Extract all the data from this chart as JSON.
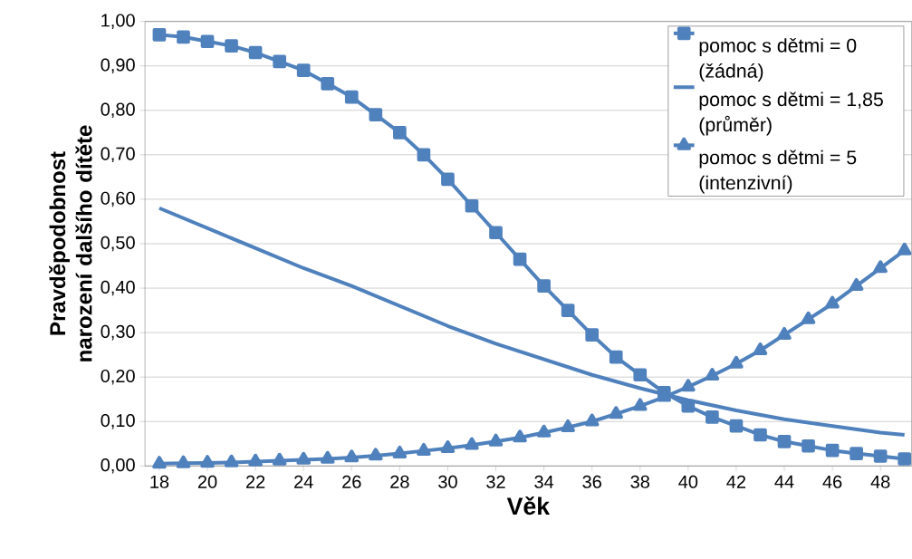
{
  "chart_data": {
    "type": "line",
    "xlabel": "Věk",
    "ylabel": "Pravděpodobnost narození dalšího dítěte",
    "xlim": [
      17.4,
      49.3
    ],
    "ylim": [
      0,
      1
    ],
    "xticks": [
      18,
      20,
      22,
      24,
      26,
      28,
      30,
      32,
      34,
      36,
      38,
      40,
      42,
      44,
      46,
      48
    ],
    "yticks": [
      {
        "value": 0,
        "label": "0,00"
      },
      {
        "value": 0.1,
        "label": "0,10"
      },
      {
        "value": 0.2,
        "label": "0,20"
      },
      {
        "value": 0.3,
        "label": "0,30"
      },
      {
        "value": 0.4,
        "label": "0,40"
      },
      {
        "value": 0.5,
        "label": "0,50"
      },
      {
        "value": 0.6,
        "label": "0,60"
      },
      {
        "value": 0.7,
        "label": "0,70"
      },
      {
        "value": 0.8,
        "label": "0,80"
      },
      {
        "value": 0.9,
        "label": "0,90"
      },
      {
        "value": 1,
        "label": "1,00"
      }
    ],
    "grid": "y",
    "legend": "top right",
    "line_style": "solid",
    "series": [
      {
        "name": "pomoc s dětmi = 0 (žádná)",
        "color": "#4f81bd",
        "marker": "square",
        "x": [
          18,
          19,
          20,
          21,
          22,
          23,
          24,
          25,
          26,
          27,
          28,
          29,
          30,
          31,
          32,
          33,
          34,
          35,
          36,
          37,
          38,
          39,
          40,
          41,
          42,
          43,
          44,
          45,
          46,
          47,
          48,
          49
        ],
        "values": [
          0.97,
          0.965,
          0.955,
          0.945,
          0.93,
          0.91,
          0.89,
          0.86,
          0.83,
          0.79,
          0.75,
          0.7,
          0.645,
          0.585,
          0.525,
          0.465,
          0.405,
          0.35,
          0.295,
          0.245,
          0.205,
          0.165,
          0.135,
          0.11,
          0.09,
          0.07,
          0.055,
          0.045,
          0.035,
          0.028,
          0.022,
          0.016
        ]
      },
      {
        "name": "pomoc s dětmi = 1,85 (průměr)",
        "color": "#4f81bd",
        "marker": "none",
        "x": [
          18,
          20,
          22,
          24,
          26,
          28,
          30,
          32,
          34,
          36,
          38,
          40,
          42,
          44,
          46,
          48,
          49
        ],
        "values": [
          0.58,
          0.535,
          0.49,
          0.445,
          0.405,
          0.36,
          0.315,
          0.275,
          0.24,
          0.205,
          0.175,
          0.148,
          0.125,
          0.105,
          0.09,
          0.075,
          0.07
        ]
      },
      {
        "name": "pomoc s dětmi = 5 (intenzivní)",
        "color": "#4f81bd",
        "marker": "triangle",
        "x": [
          18,
          19,
          20,
          21,
          22,
          23,
          24,
          25,
          26,
          27,
          28,
          29,
          30,
          31,
          32,
          33,
          34,
          35,
          36,
          37,
          38,
          39,
          40,
          41,
          42,
          43,
          44,
          45,
          46,
          47,
          48,
          49
        ],
        "values": [
          0.005,
          0.006,
          0.007,
          0.008,
          0.01,
          0.012,
          0.014,
          0.016,
          0.019,
          0.023,
          0.028,
          0.034,
          0.04,
          0.047,
          0.055,
          0.064,
          0.075,
          0.087,
          0.1,
          0.117,
          0.135,
          0.155,
          0.178,
          0.203,
          0.23,
          0.26,
          0.295,
          0.33,
          0.365,
          0.405,
          0.445,
          0.485
        ]
      }
    ]
  }
}
